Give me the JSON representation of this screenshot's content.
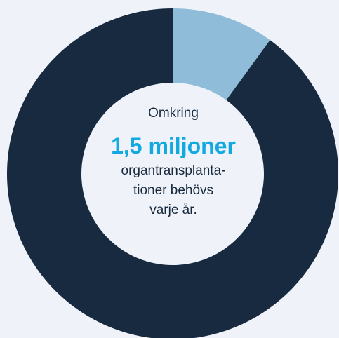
{
  "chart_data": {
    "type": "pie",
    "donut": true,
    "slices": [
      {
        "value": 10,
        "color": "#8fbcd8"
      },
      {
        "value": 90,
        "color": "#172a3f"
      }
    ],
    "center_label": {
      "pre": "Omkring",
      "value": "1,5 miljoner",
      "post": "organtransplanta-\ntioner behövs\nvarje år."
    },
    "value_color": "#12a9e1",
    "hole_color": "#eff3f9"
  }
}
